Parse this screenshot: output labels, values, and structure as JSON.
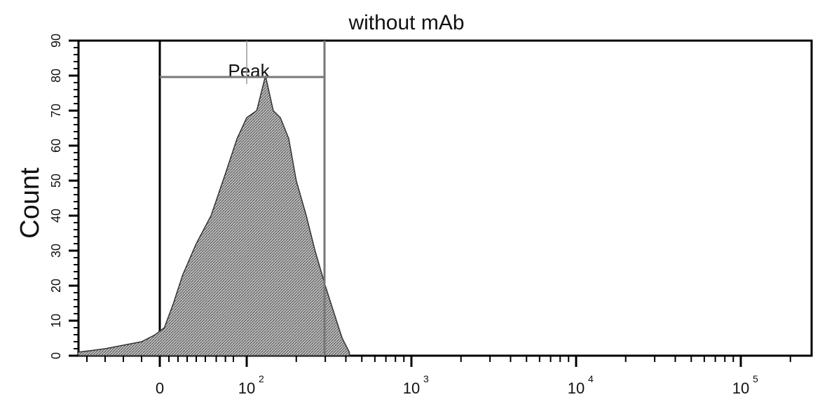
{
  "chart_data": {
    "type": "area",
    "title": "without mAb",
    "ylabel": "Count",
    "xlabel": "",
    "y_ticks": [
      "0",
      "10",
      "20",
      "30",
      "40",
      "50",
      "60",
      "70",
      "80",
      "90"
    ],
    "ylim": [
      0,
      90
    ],
    "x_scale": "biexponential",
    "x_ticks": [
      {
        "label": "0",
        "base": "0",
        "exp": "",
        "value": 0
      },
      {
        "label": "10^2",
        "base": "10",
        "exp": "2",
        "value": 100
      },
      {
        "label": "10^3",
        "base": "10",
        "exp": "3",
        "value": 1000
      },
      {
        "label": "10^4",
        "base": "10",
        "exp": "4",
        "value": 10000
      },
      {
        "label": "10^5",
        "base": "10",
        "exp": "5",
        "value": 100000
      }
    ],
    "gate": {
      "label": "Peak",
      "x_range": [
        0,
        400
      ]
    },
    "series": [
      {
        "x": [
          -90,
          -60,
          -40,
          -20,
          -5,
          5,
          15,
          25,
          40,
          55,
          70,
          85,
          100,
          115,
          130,
          145,
          160,
          180,
          200,
          230,
          260,
          300,
          340,
          380,
          420
        ],
        "values": [
          1,
          2,
          3,
          4,
          6,
          8,
          15,
          23,
          32,
          40,
          52,
          62,
          68,
          70,
          80,
          70,
          68,
          62,
          50,
          40,
          30,
          20,
          12,
          5,
          1
        ]
      }
    ],
    "grid": false
  }
}
